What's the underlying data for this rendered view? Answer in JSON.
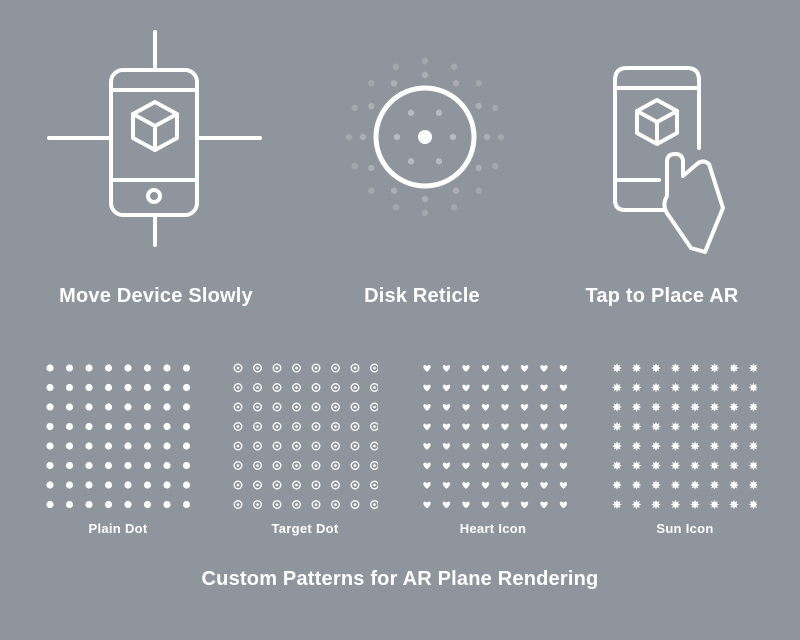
{
  "labels": {
    "move_device": "Move Device Slowly",
    "disk_reticle": "Disk Reticle",
    "tap_to_place": "Tap to Place AR"
  },
  "patterns": [
    {
      "label": "Plain Dot",
      "kind": "plain-dot"
    },
    {
      "label": "Target Dot",
      "kind": "target-dot"
    },
    {
      "label": "Heart Icon",
      "kind": "heart"
    },
    {
      "label": "Sun Icon",
      "kind": "sun"
    }
  ],
  "footer": "Custom Patterns for AR Plane Rendering",
  "colors": {
    "background": "#8f959d",
    "foreground": "#ffffff"
  }
}
